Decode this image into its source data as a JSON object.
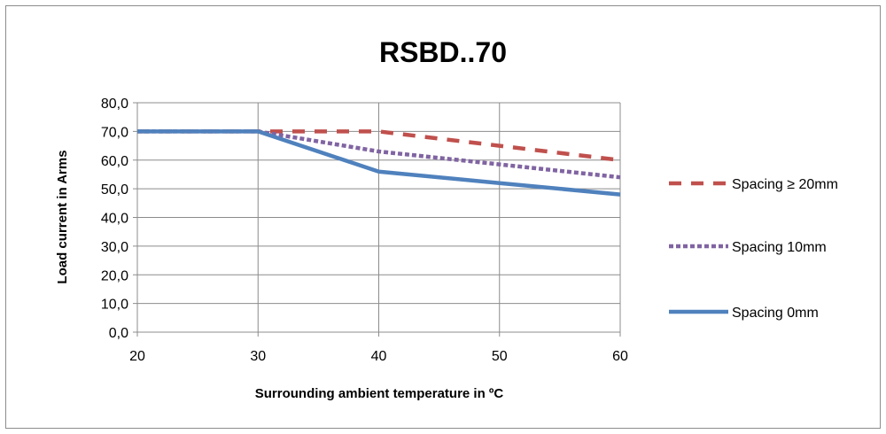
{
  "chart_data": {
    "type": "line",
    "title": "RSBD..70",
    "xlabel": "Surrounding ambient temperature in ºC",
    "ylabel": "Load current in Arms",
    "x": [
      20,
      30,
      40,
      50,
      60
    ],
    "xlim": [
      20,
      60
    ],
    "ylim": [
      0,
      80
    ],
    "x_ticks": [
      "20",
      "30",
      "40",
      "50",
      "60"
    ],
    "y_ticks": [
      "0,0",
      "10,0",
      "20,0",
      "30,0",
      "40,0",
      "50,0",
      "60,0",
      "70,0",
      "80,0"
    ],
    "grid": true,
    "legend_position": "right",
    "series": [
      {
        "name": "Spacing ≥ 20mm",
        "values": [
          70,
          70,
          70,
          65,
          60
        ],
        "color": "#c0504d",
        "style": "dash"
      },
      {
        "name": "Spacing 10mm",
        "values": [
          70,
          70,
          63,
          58.5,
          54
        ],
        "color": "#8064a2",
        "style": "dot"
      },
      {
        "name": "Spacing 0mm",
        "values": [
          70,
          70,
          56,
          52,
          48
        ],
        "color": "#4f81bd",
        "style": "solid"
      }
    ]
  }
}
